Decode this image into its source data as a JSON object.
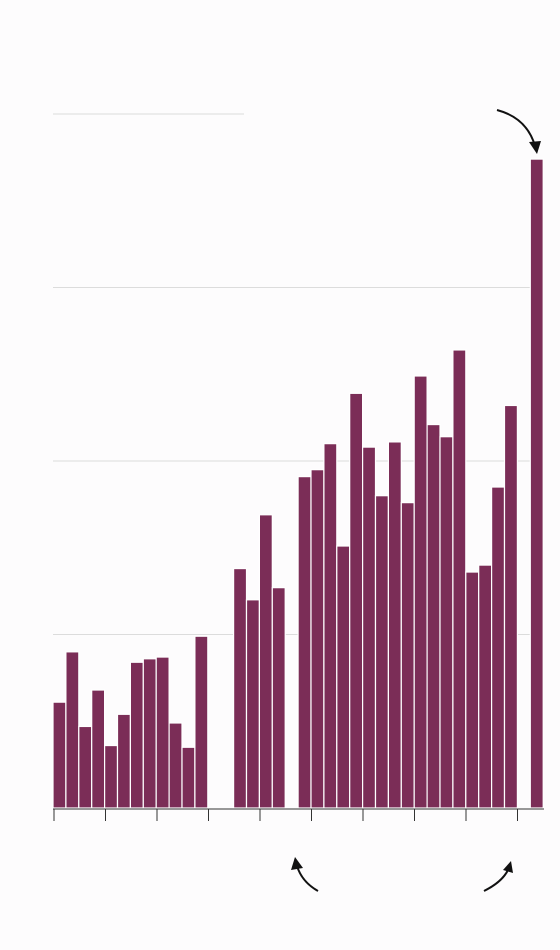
{
  "chart_data": {
    "type": "bar",
    "title": "",
    "xlabel": "",
    "ylabel": "",
    "ylim": [
      0,
      3.75
    ],
    "gridlines": [
      1,
      2,
      3
    ],
    "grid": true,
    "bar_color": "#7b2d57",
    "tick_count": 10,
    "values": [
      0.61,
      0.9,
      0.47,
      0.68,
      0.36,
      0.54,
      0.84,
      0.86,
      0.87,
      0.49,
      0.35,
      0.99,
      null,
      null,
      1.38,
      1.2,
      1.69,
      1.27,
      null,
      1.91,
      1.95,
      2.1,
      1.51,
      2.39,
      2.08,
      1.8,
      2.11,
      1.76,
      2.49,
      2.21,
      2.14,
      2.64,
      1.36,
      1.4,
      1.85,
      2.32,
      null,
      3.74
    ],
    "annotations": [
      {
        "name": "arrow-top-right",
        "points_to": "tallest-bar"
      },
      {
        "name": "arrow-bottom-middle",
        "points_to": "axis-gap"
      },
      {
        "name": "arrow-bottom-right",
        "points_to": "axis-gap"
      }
    ]
  }
}
